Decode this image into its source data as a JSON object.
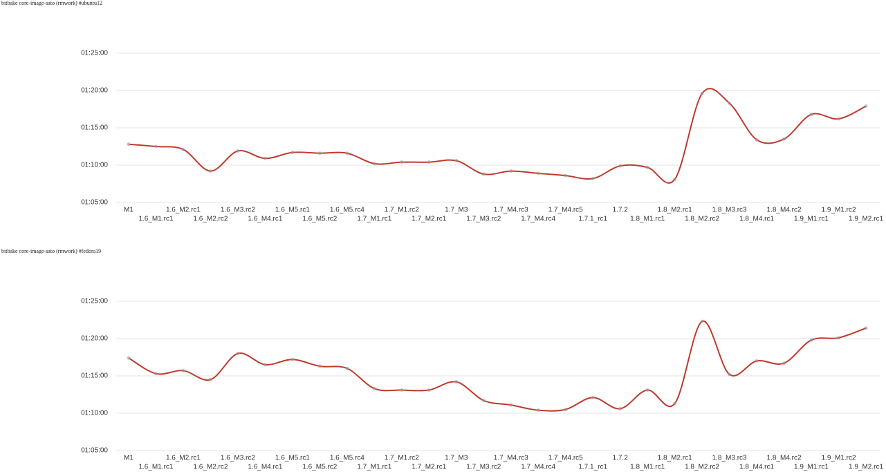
{
  "chart_data": [
    {
      "type": "line",
      "title": "bitbake core-image-sato (rmwork) #ubuntu12",
      "categories": [
        "M1",
        "1.6_M1.rc1",
        "1.6_M2.rc1",
        "1.6_M2.rc2",
        "1.6_M3.rc2",
        "1.6_M4.rc1",
        "1.6_M5.rc1",
        "1.6_M5.rc2",
        "1.6_M5.rc4",
        "1.7_M1.rc1",
        "1.7_M1.rc2",
        "1.7_M2.rc1",
        "1.7_M3",
        "1.7_M3.rc2",
        "1.7_M4.rc3",
        "1.7_M4.rc4",
        "1.7_M4.rc5",
        "1.7.1_rc1",
        "1.7.2",
        "1.8_M1.rc1",
        "1.8_M2.rc1",
        "1.8_M2.rc2",
        "1.8_M3.rc3",
        "1.8_M4.rc1",
        "1.8_M4.rc2",
        "1.9_M1.rc1",
        "1.9_M1.rc2",
        "1.9_M2.rc1"
      ],
      "values": [
        72.8,
        72.5,
        72.1,
        69.2,
        71.9,
        70.9,
        71.7,
        71.6,
        71.6,
        70.2,
        70.4,
        70.4,
        70.6,
        68.8,
        69.2,
        68.9,
        68.6,
        68.2,
        69.9,
        69.7,
        68.1,
        79.6,
        78.3,
        73.4,
        73.5,
        76.8,
        76.2,
        77.9
      ],
      "color": "#c0392b",
      "ylim": [
        65,
        85
      ],
      "yticks": [
        {
          "value": 65,
          "label": "01:05:00"
        },
        {
          "value": 70,
          "label": "01:10:00"
        },
        {
          "value": 75,
          "label": "01:15:00"
        },
        {
          "value": 80,
          "label": "01:20:00"
        },
        {
          "value": 85,
          "label": "01:25:00"
        }
      ],
      "grid": true
    },
    {
      "type": "line",
      "title": "bitbake core-image-sato (rmwork) #fedora19",
      "categories": [
        "M1",
        "1.6_M1.rc1",
        "1.6_M2.rc1",
        "1.6_M2.rc2",
        "1.6_M3.rc2",
        "1.6_M4.rc1",
        "1.6_M5.rc1",
        "1.6_M5.rc2",
        "1.6_M5.rc4",
        "1.7_M1.rc1",
        "1.7_M1.rc2",
        "1.7_M2.rc1",
        "1.7_M3",
        "1.7_M3.rc2",
        "1.7_M4.rc3",
        "1.7_M4.rc4",
        "1.7_M4.rc5",
        "1.7.1_rc1",
        "1.7.2",
        "1.8_M1.rc1",
        "1.8_M2.rc1",
        "1.8_M2.rc2",
        "1.8_M3.rc3",
        "1.8_M4.rc1",
        "1.8_M4.rc2",
        "1.9_M1.rc1",
        "1.9_M1.rc2",
        "1.9_M2.rc1"
      ],
      "values": [
        77.4,
        75.3,
        75.7,
        74.5,
        78.0,
        76.5,
        77.2,
        76.3,
        76.0,
        73.3,
        73.1,
        73.1,
        74.2,
        71.7,
        71.1,
        70.4,
        70.5,
        72.1,
        70.6,
        73.1,
        71.3,
        82.3,
        75.2,
        77.0,
        76.7,
        79.8,
        80.1,
        81.4
      ],
      "color": "#c0392b",
      "ylim": [
        65,
        85
      ],
      "yticks": [
        {
          "value": 65,
          "label": "01:05:00"
        },
        {
          "value": 70,
          "label": "01:10:00"
        },
        {
          "value": 75,
          "label": "01:15:00"
        },
        {
          "value": 80,
          "label": "01:20:00"
        },
        {
          "value": 85,
          "label": "01:25:00"
        }
      ],
      "grid": true
    }
  ]
}
